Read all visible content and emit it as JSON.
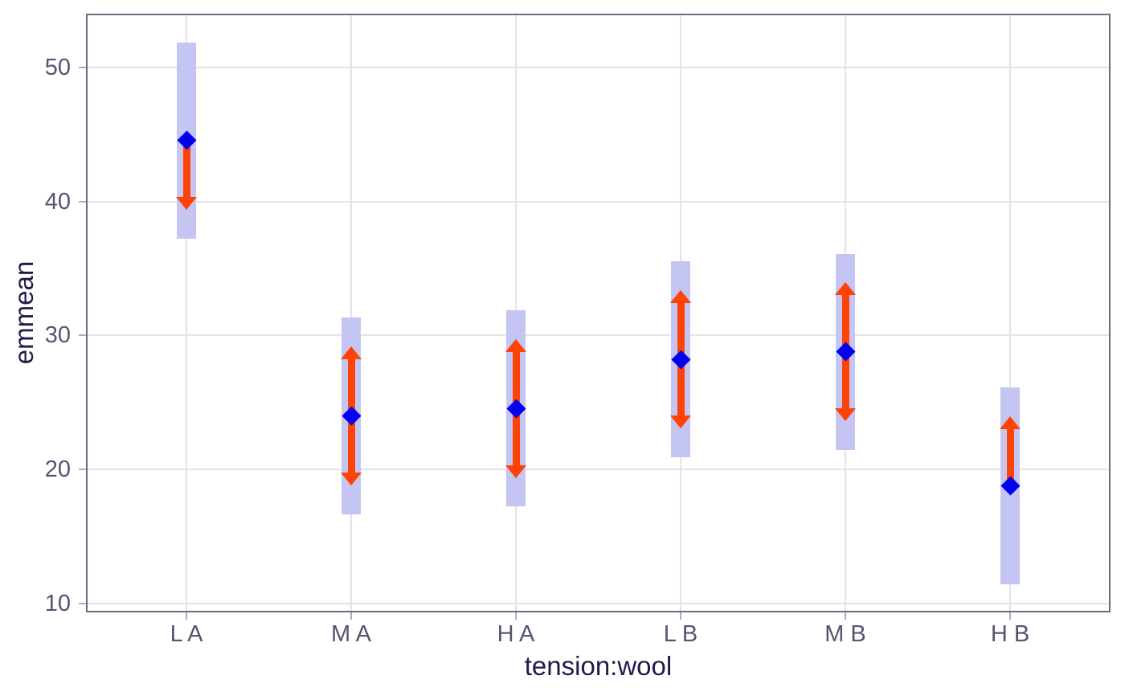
{
  "chart_data": {
    "type": "scatter",
    "subtype": "emmeans-interval-plot",
    "xlabel": "tension:wool",
    "ylabel": "emmean",
    "categories": [
      "L A",
      "M A",
      "H A",
      "L B",
      "M B",
      "H B"
    ],
    "points": [
      {
        "category": "L A",
        "emmean": 44.56,
        "ci": [
          37.22,
          51.89
        ],
        "arrow_down_to": 39.37,
        "arrow_up_to": null
      },
      {
        "category": "M A",
        "emmean": 24.0,
        "ci": [
          16.67,
          31.33
        ],
        "arrow_down_to": 18.82,
        "arrow_up_to": 29.18
      },
      {
        "category": "H A",
        "emmean": 24.56,
        "ci": [
          17.22,
          31.89
        ],
        "arrow_down_to": 19.37,
        "arrow_up_to": 29.74
      },
      {
        "category": "L B",
        "emmean": 28.22,
        "ci": [
          20.89,
          35.56
        ],
        "arrow_down_to": 23.04,
        "arrow_up_to": 33.41
      },
      {
        "category": "M B",
        "emmean": 28.78,
        "ci": [
          21.44,
          36.11
        ],
        "arrow_down_to": 23.59,
        "arrow_up_to": 33.96
      },
      {
        "category": "H B",
        "emmean": 18.78,
        "ci": [
          11.44,
          26.11
        ],
        "arrow_down_to": null,
        "arrow_up_to": 23.96
      }
    ],
    "yticks": [
      10,
      20,
      30,
      40,
      50
    ],
    "ylim": [
      9.45,
      53.9
    ],
    "x_domain": [
      0.4,
      6.6
    ],
    "grid": true,
    "legend": false,
    "colors": {
      "interval_bar": "#c5c5f4",
      "point": "#0000ee",
      "arrow": "#ff4205",
      "gridline": "#e3e3e9",
      "panel_border": "#6e6c84",
      "tick": "#aeacbf",
      "tick_label": "#56546f",
      "axis_title": "#201c49",
      "background": "#ffffff"
    }
  }
}
